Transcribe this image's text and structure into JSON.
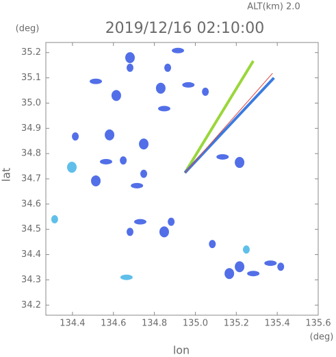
{
  "chart_data": {
    "type": "scatter",
    "subtitle": "ALT(km) 2.0",
    "title": "2019/12/16 02:10:00",
    "x_label": "lon",
    "y_label": "lat",
    "x_unit": "(deg)",
    "y_unit": "(deg)",
    "xlim": [
      134.27,
      135.6
    ],
    "ylim": [
      34.16,
      35.24
    ],
    "xticks": [
      134.4,
      134.6,
      134.8,
      {
        "value": 135,
        "label": "135.0"
      },
      135.2,
      135.4,
      135.6
    ],
    "yticks": [
      34.2,
      34.3,
      34.4,
      34.5,
      34.6,
      34.7,
      34.8,
      34.9,
      {
        "value": 35,
        "label": "35.0"
      },
      35.1,
      35.2
    ],
    "grid": false,
    "series": [
      {
        "type": "scatter",
        "color": "#3f5fe6",
        "x": [
          134.681,
          134.681,
          134.514,
          134.865,
          134.831,
          134.966,
          135.049,
          134.614,
          134.848,
          134.414,
          134.581,
          134.564,
          134.648,
          134.514,
          134.715,
          134.748,
          135.216,
          135.133,
          134.882,
          134.848,
          134.731,
          134.681,
          135.216,
          135.367,
          135.417,
          135.166,
          135.283,
          135.083,
          134.748,
          134.915
        ],
        "y": [
          35.14,
          35.18,
          35.086,
          35.14,
          35.059,
          35.072,
          35.045,
          35.03,
          34.978,
          34.868,
          34.874,
          34.768,
          34.773,
          34.692,
          34.673,
          34.72,
          34.765,
          34.787,
          34.53,
          34.49,
          34.53,
          34.49,
          34.352,
          34.366,
          34.352,
          34.325,
          34.325,
          34.442,
          34.838,
          35.208
        ]
      },
      {
        "type": "scatter",
        "color": "#4fb8e8",
        "x": [
          134.313,
          134.397,
          134.664,
          135.249
        ],
        "y": [
          34.54,
          34.746,
          34.31,
          34.42
        ]
      },
      {
        "type": "line",
        "color": "#9ad63a",
        "x": [
          134.949,
          135.283
        ],
        "y": [
          34.724,
          35.167
        ]
      },
      {
        "type": "line",
        "color": "#3a7be0",
        "x": [
          134.949,
          135.384
        ],
        "y": [
          34.724,
          35.1
        ]
      },
      {
        "type": "line",
        "color": "#e04040",
        "x": [
          134.949,
          135.377
        ],
        "y": [
          34.724,
          35.118
        ]
      }
    ]
  }
}
